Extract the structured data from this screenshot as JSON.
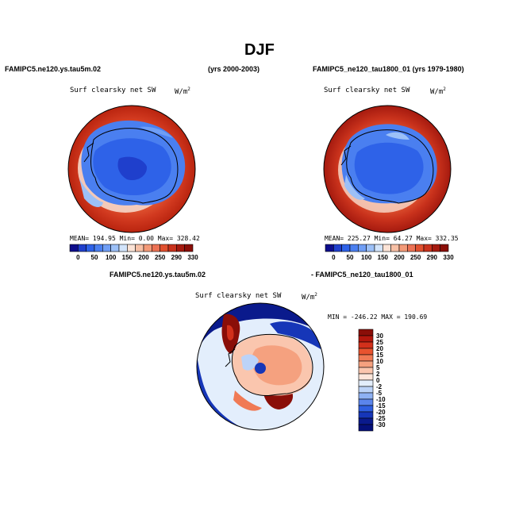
{
  "title": "DJF",
  "panel_left": {
    "case": "FAMIPC5.ne120.ys.tau5m.02",
    "years": "(yrs 2000-2003)",
    "variable": "Surf clearsky net SW",
    "units": "W/m",
    "units_exp": "2",
    "stats": "MEAN= 194.95   Min=    0.00   Max= 328.42"
  },
  "panel_right": {
    "case": "FAMIPC5_ne120_tau1800_01 (yrs 1979-1980)",
    "variable": "Surf clearsky net SW",
    "units": "W/m",
    "units_exp": "2",
    "stats": "MEAN= 225.27   Min=   64.27   Max= 332.35"
  },
  "colorbar_levels": [
    "0",
    "50",
    "100",
    "150",
    "200",
    "250",
    "290",
    "330"
  ],
  "colorbar_colors": [
    "#0d0d8c",
    "#1f3fcc",
    "#2e62e8",
    "#4a7ff0",
    "#6f9ef5",
    "#9cc0f7",
    "#d2e4fb",
    "#fbe3d6",
    "#f7c0a6",
    "#f39a78",
    "#ec7254",
    "#e0502f",
    "#c9321c",
    "#a51a0f",
    "#8a0e08"
  ],
  "diff_panel": {
    "case_a": "FAMIPC5.ne120.ys.tau5m.02",
    "case_b": "- FAMIPC5_ne120_tau1800_01",
    "variable": "Surf clearsky net SW",
    "units": "W/m",
    "units_exp": "2",
    "stats": "MIN = -246.22  MAX = 190.69"
  },
  "diff_colorbar_levels": [
    "30",
    "25",
    "20",
    "15",
    "10",
    "5",
    "2",
    "0",
    "-2",
    "-5",
    "-10",
    "-15",
    "-20",
    "-25",
    "-30"
  ],
  "diff_colorbar_colors": [
    "#8a0e08",
    "#b3170d",
    "#d2301b",
    "#e8532f",
    "#f07a55",
    "#f5a17f",
    "#fac6ae",
    "#fde6da",
    "#e3eefc",
    "#bcd3f8",
    "#8eb1f3",
    "#5b85ec",
    "#2f5fe0",
    "#1636b8",
    "#0a1a8c",
    "#05107a"
  ]
}
